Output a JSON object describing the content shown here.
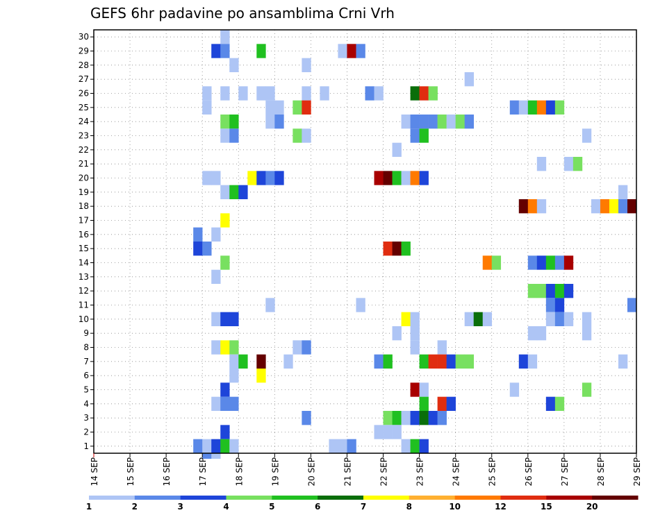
{
  "chart_data": {
    "type": "heatmap",
    "title": "GEFS 6hr padavine po ansamblima Crni Vrh",
    "xlabel": "",
    "ylabel": "",
    "x_ticks": [
      "14 SEP",
      "15 SEP",
      "16 SEP",
      "17 SEP",
      "18 SEP",
      "19 SEP",
      "20 SEP",
      "21 SEP",
      "22 SEP",
      "23 SEP",
      "24 SEP",
      "25 SEP",
      "26 SEP",
      "27 SEP",
      "28 SEP",
      "29 SEP"
    ],
    "y_ticks": [
      1,
      2,
      3,
      4,
      5,
      6,
      7,
      8,
      9,
      10,
      11,
      12,
      13,
      14,
      15,
      16,
      17,
      18,
      19,
      20,
      21,
      22,
      23,
      24,
      25,
      26,
      27,
      28,
      29,
      30
    ],
    "xlim_days": [
      14,
      29
    ],
    "ylim": [
      0.5,
      30.5
    ],
    "grid": "dotted",
    "colorbar": {
      "levels": [
        "1",
        "2",
        "3",
        "4",
        "5",
        "6",
        "7",
        "8",
        "10",
        "12",
        "15",
        "20"
      ],
      "colors": [
        "#aec5f5",
        "#5a88e8",
        "#1e45d9",
        "#78e060",
        "#20c020",
        "#0a6e0a",
        "#ffff00",
        "#ffb030",
        "#ff7a00",
        "#e02d10",
        "#a80000",
        "#640000"
      ]
    },
    "cell_hours": 6,
    "cells": [
      {
        "x": "17 SEP 12z",
        "m": 30,
        "level": 1
      },
      {
        "x": "17 SEP 06z",
        "m": 29,
        "level": 3
      },
      {
        "x": "17 SEP 12z",
        "m": 29,
        "level": 2
      },
      {
        "x": "18 SEP 12z",
        "m": 29,
        "level": 5
      },
      {
        "x": "20 SEP 18z",
        "m": 29,
        "level": 1
      },
      {
        "x": "21 SEP 00z",
        "m": 29,
        "level": 15
      },
      {
        "x": "21 SEP 06z",
        "m": 29,
        "level": 2
      },
      {
        "x": "17 SEP 18z",
        "m": 28,
        "level": 1
      },
      {
        "x": "19 SEP 18z",
        "m": 28,
        "level": 1
      },
      {
        "x": "24 SEP 06z",
        "m": 27,
        "level": 1
      },
      {
        "x": "17 SEP 00z",
        "m": 26,
        "level": 1
      },
      {
        "x": "17 SEP 12z",
        "m": 26,
        "level": 1
      },
      {
        "x": "18 SEP 00z",
        "m": 26,
        "level": 1
      },
      {
        "x": "18 SEP 12z",
        "m": 26,
        "level": 1
      },
      {
        "x": "18 SEP 18z",
        "m": 26,
        "level": 1
      },
      {
        "x": "19 SEP 18z",
        "m": 26,
        "level": 1
      },
      {
        "x": "20 SEP 06z",
        "m": 26,
        "level": 1
      },
      {
        "x": "21 SEP 12z",
        "m": 26,
        "level": 2
      },
      {
        "x": "21 SEP 18z",
        "m": 26,
        "level": 1
      },
      {
        "x": "22 SEP 18z",
        "m": 26,
        "level": 6
      },
      {
        "x": "23 SEP 00z",
        "m": 26,
        "level": 12
      },
      {
        "x": "23 SEP 06z",
        "m": 26,
        "level": 4
      },
      {
        "x": "17 SEP 00z",
        "m": 25,
        "level": 1
      },
      {
        "x": "18 SEP 18z",
        "m": 25,
        "level": 1
      },
      {
        "x": "19 SEP 00z",
        "m": 25,
        "level": 1
      },
      {
        "x": "19 SEP 12z",
        "m": 25,
        "level": 4
      },
      {
        "x": "19 SEP 18z",
        "m": 25,
        "level": 12
      },
      {
        "x": "25 SEP 12z",
        "m": 25,
        "level": 2
      },
      {
        "x": "25 SEP 18z",
        "m": 25,
        "level": 1
      },
      {
        "x": "26 SEP 00z",
        "m": 25,
        "level": 5
      },
      {
        "x": "26 SEP 06z",
        "m": 25,
        "level": 10
      },
      {
        "x": "26 SEP 12z",
        "m": 25,
        "level": 3
      },
      {
        "x": "26 SEP 18z",
        "m": 25,
        "level": 4
      },
      {
        "x": "17 SEP 12z",
        "m": 24,
        "level": 4
      },
      {
        "x": "17 SEP 18z",
        "m": 24,
        "level": 5
      },
      {
        "x": "18 SEP 18z",
        "m": 24,
        "level": 1
      },
      {
        "x": "19 SEP 00z",
        "m": 24,
        "level": 2
      },
      {
        "x": "22 SEP 12z",
        "m": 24,
        "level": 1
      },
      {
        "x": "22 SEP 18z",
        "m": 24,
        "level": 2
      },
      {
        "x": "23 SEP 00z",
        "m": 24,
        "level": 2
      },
      {
        "x": "23 SEP 06z",
        "m": 24,
        "level": 2
      },
      {
        "x": "23 SEP 12z",
        "m": 24,
        "level": 4
      },
      {
        "x": "23 SEP 18z",
        "m": 24,
        "level": 1
      },
      {
        "x": "24 SEP 00z",
        "m": 24,
        "level": 4
      },
      {
        "x": "24 SEP 06z",
        "m": 24,
        "level": 2
      },
      {
        "x": "17 SEP 12z",
        "m": 23,
        "level": 1
      },
      {
        "x": "17 SEP 18z",
        "m": 23,
        "level": 2
      },
      {
        "x": "19 SEP 12z",
        "m": 23,
        "level": 4
      },
      {
        "x": "19 SEP 18z",
        "m": 23,
        "level": 1
      },
      {
        "x": "22 SEP 18z",
        "m": 23,
        "level": 2
      },
      {
        "x": "23 SEP 00z",
        "m": 23,
        "level": 5
      },
      {
        "x": "27 SEP 12z",
        "m": 23,
        "level": 1
      },
      {
        "x": "22 SEP 06z",
        "m": 22,
        "level": 1
      },
      {
        "x": "26 SEP 06z",
        "m": 21,
        "level": 1
      },
      {
        "x": "27 SEP 00z",
        "m": 21,
        "level": 1
      },
      {
        "x": "27 SEP 06z",
        "m": 21,
        "level": 4
      },
      {
        "x": "17 SEP 00z",
        "m": 20,
        "level": 1
      },
      {
        "x": "17 SEP 06z",
        "m": 20,
        "level": 1
      },
      {
        "x": "18 SEP 06z",
        "m": 20,
        "level": 7
      },
      {
        "x": "18 SEP 12z",
        "m": 20,
        "level": 3
      },
      {
        "x": "18 SEP 18z",
        "m": 20,
        "level": 2
      },
      {
        "x": "19 SEP 00z",
        "m": 20,
        "level": 3
      },
      {
        "x": "21 SEP 18z",
        "m": 20,
        "level": 15
      },
      {
        "x": "22 SEP 00z",
        "m": 20,
        "level": 20
      },
      {
        "x": "22 SEP 06z",
        "m": 20,
        "level": 5
      },
      {
        "x": "22 SEP 12z",
        "m": 20,
        "level": 1
      },
      {
        "x": "22 SEP 18z",
        "m": 20,
        "level": 10
      },
      {
        "x": "23 SEP 00z",
        "m": 20,
        "level": 3
      },
      {
        "x": "17 SEP 12z",
        "m": 19,
        "level": 1
      },
      {
        "x": "17 SEP 18z",
        "m": 19,
        "level": 5
      },
      {
        "x": "18 SEP 00z",
        "m": 19,
        "level": 3
      },
      {
        "x": "28 SEP 12z",
        "m": 19,
        "level": 1
      },
      {
        "x": "25 SEP 18z",
        "m": 18,
        "level": 20
      },
      {
        "x": "26 SEP 00z",
        "m": 18,
        "level": 10
      },
      {
        "x": "26 SEP 06z",
        "m": 18,
        "level": 1
      },
      {
        "x": "27 SEP 18z",
        "m": 18,
        "level": 1
      },
      {
        "x": "28 SEP 00z",
        "m": 18,
        "level": 10
      },
      {
        "x": "28 SEP 06z",
        "m": 18,
        "level": 7
      },
      {
        "x": "28 SEP 12z",
        "m": 18,
        "level": 2
      },
      {
        "x": "28 SEP 18z",
        "m": 18,
        "level": 20
      },
      {
        "x": "17 SEP 12z",
        "m": 17,
        "level": 7
      },
      {
        "x": "16 SEP 18z",
        "m": 16,
        "level": 2
      },
      {
        "x": "17 SEP 06z",
        "m": 16,
        "level": 1
      },
      {
        "x": "16 SEP 18z",
        "m": 15,
        "level": 3
      },
      {
        "x": "17 SEP 00z",
        "m": 15,
        "level": 2
      },
      {
        "x": "22 SEP 00z",
        "m": 15,
        "level": 12
      },
      {
        "x": "22 SEP 06z",
        "m": 15,
        "level": 20
      },
      {
        "x": "22 SEP 12z",
        "m": 15,
        "level": 5
      },
      {
        "x": "17 SEP 12z",
        "m": 14,
        "level": 4
      },
      {
        "x": "24 SEP 18z",
        "m": 14,
        "level": 10
      },
      {
        "x": "25 SEP 00z",
        "m": 14,
        "level": 4
      },
      {
        "x": "26 SEP 00z",
        "m": 14,
        "level": 2
      },
      {
        "x": "26 SEP 06z",
        "m": 14,
        "level": 3
      },
      {
        "x": "26 SEP 12z",
        "m": 14,
        "level": 5
      },
      {
        "x": "26 SEP 18z",
        "m": 14,
        "level": 2
      },
      {
        "x": "27 SEP 00z",
        "m": 14,
        "level": 15
      },
      {
        "x": "17 SEP 06z",
        "m": 13,
        "level": 1
      },
      {
        "x": "26 SEP 00z",
        "m": 12,
        "level": 4
      },
      {
        "x": "26 SEP 06z",
        "m": 12,
        "level": 4
      },
      {
        "x": "26 SEP 12z",
        "m": 12,
        "level": 3
      },
      {
        "x": "26 SEP 18z",
        "m": 12,
        "level": 5
      },
      {
        "x": "27 SEP 00z",
        "m": 12,
        "level": 3
      },
      {
        "x": "18 SEP 18z",
        "m": 11,
        "level": 1
      },
      {
        "x": "21 SEP 06z",
        "m": 11,
        "level": 1
      },
      {
        "x": "26 SEP 12z",
        "m": 11,
        "level": 2
      },
      {
        "x": "26 SEP 18z",
        "m": 11,
        "level": 3
      },
      {
        "x": "28 SEP 18z",
        "m": 11,
        "level": 2
      },
      {
        "x": "17 SEP 06z",
        "m": 10,
        "level": 1
      },
      {
        "x": "17 SEP 12z",
        "m": 10,
        "level": 3
      },
      {
        "x": "17 SEP 18z",
        "m": 10,
        "level": 3
      },
      {
        "x": "22 SEP 12z",
        "m": 10,
        "level": 7
      },
      {
        "x": "22 SEP 18z",
        "m": 10,
        "level": 1
      },
      {
        "x": "24 SEP 06z",
        "m": 10,
        "level": 1
      },
      {
        "x": "24 SEP 12z",
        "m": 10,
        "level": 6
      },
      {
        "x": "24 SEP 18z",
        "m": 10,
        "level": 1
      },
      {
        "x": "26 SEP 12z",
        "m": 10,
        "level": 1
      },
      {
        "x": "26 SEP 18z",
        "m": 10,
        "level": 2
      },
      {
        "x": "27 SEP 00z",
        "m": 10,
        "level": 1
      },
      {
        "x": "27 SEP 12z",
        "m": 10,
        "level": 1
      },
      {
        "x": "22 SEP 06z",
        "m": 9,
        "level": 1
      },
      {
        "x": "22 SEP 18z",
        "m": 9,
        "level": 1
      },
      {
        "x": "26 SEP 00z",
        "m": 9,
        "level": 1
      },
      {
        "x": "26 SEP 06z",
        "m": 9,
        "level": 1
      },
      {
        "x": "27 SEP 12z",
        "m": 9,
        "level": 1
      },
      {
        "x": "17 SEP 06z",
        "m": 8,
        "level": 1
      },
      {
        "x": "17 SEP 12z",
        "m": 8,
        "level": 7
      },
      {
        "x": "17 SEP 18z",
        "m": 8,
        "level": 4
      },
      {
        "x": "19 SEP 12z",
        "m": 8,
        "level": 1
      },
      {
        "x": "19 SEP 18z",
        "m": 8,
        "level": 2
      },
      {
        "x": "22 SEP 18z",
        "m": 8,
        "level": 1
      },
      {
        "x": "23 SEP 12z",
        "m": 8,
        "level": 1
      },
      {
        "x": "17 SEP 18z",
        "m": 7,
        "level": 1
      },
      {
        "x": "18 SEP 00z",
        "m": 7,
        "level": 5
      },
      {
        "x": "18 SEP 12z",
        "m": 7,
        "level": 20
      },
      {
        "x": "19 SEP 06z",
        "m": 7,
        "level": 1
      },
      {
        "x": "21 SEP 18z",
        "m": 7,
        "level": 2
      },
      {
        "x": "22 SEP 00z",
        "m": 7,
        "level": 5
      },
      {
        "x": "23 SEP 00z",
        "m": 7,
        "level": 5
      },
      {
        "x": "23 SEP 06z",
        "m": 7,
        "level": 12
      },
      {
        "x": "23 SEP 12z",
        "m": 7,
        "level": 12
      },
      {
        "x": "23 SEP 18z",
        "m": 7,
        "level": 3
      },
      {
        "x": "24 SEP 00z",
        "m": 7,
        "level": 4
      },
      {
        "x": "24 SEP 06z",
        "m": 7,
        "level": 4
      },
      {
        "x": "25 SEP 18z",
        "m": 7,
        "level": 3
      },
      {
        "x": "26 SEP 00z",
        "m": 7,
        "level": 1
      },
      {
        "x": "28 SEP 12z",
        "m": 7,
        "level": 1
      },
      {
        "x": "17 SEP 18z",
        "m": 6,
        "level": 1
      },
      {
        "x": "18 SEP 12z",
        "m": 6,
        "level": 7
      },
      {
        "x": "17 SEP 12z",
        "m": 5,
        "level": 3
      },
      {
        "x": "22 SEP 18z",
        "m": 5,
        "level": 15
      },
      {
        "x": "23 SEP 00z",
        "m": 5,
        "level": 1
      },
      {
        "x": "25 SEP 12z",
        "m": 5,
        "level": 1
      },
      {
        "x": "27 SEP 12z",
        "m": 5,
        "level": 4
      },
      {
        "x": "17 SEP 06z",
        "m": 4,
        "level": 1
      },
      {
        "x": "17 SEP 12z",
        "m": 4,
        "level": 2
      },
      {
        "x": "17 SEP 18z",
        "m": 4,
        "level": 2
      },
      {
        "x": "23 SEP 00z",
        "m": 4,
        "level": 5
      },
      {
        "x": "23 SEP 12z",
        "m": 4,
        "level": 12
      },
      {
        "x": "23 SEP 18z",
        "m": 4,
        "level": 3
      },
      {
        "x": "26 SEP 12z",
        "m": 4,
        "level": 3
      },
      {
        "x": "26 SEP 18z",
        "m": 4,
        "level": 4
      },
      {
        "x": "19 SEP 18z",
        "m": 3,
        "level": 2
      },
      {
        "x": "22 SEP 00z",
        "m": 3,
        "level": 4
      },
      {
        "x": "22 SEP 06z",
        "m": 3,
        "level": 5
      },
      {
        "x": "22 SEP 12z",
        "m": 3,
        "level": 1
      },
      {
        "x": "22 SEP 18z",
        "m": 3,
        "level": 3
      },
      {
        "x": "23 SEP 00z",
        "m": 3,
        "level": 6
      },
      {
        "x": "23 SEP 06z",
        "m": 3,
        "level": 3
      },
      {
        "x": "23 SEP 12z",
        "m": 3,
        "level": 2
      },
      {
        "x": "17 SEP 12z",
        "m": 2,
        "level": 3
      },
      {
        "x": "21 SEP 18z",
        "m": 2,
        "level": 1
      },
      {
        "x": "22 SEP 00z",
        "m": 2,
        "level": 1
      },
      {
        "x": "22 SEP 06z",
        "m": 2,
        "level": 1
      },
      {
        "x": "16 SEP 18z",
        "m": 1,
        "level": 2
      },
      {
        "x": "17 SEP 00z",
        "m": 1,
        "level": 1
      },
      {
        "x": "17 SEP 06z",
        "m": 1,
        "level": 3
      },
      {
        "x": "17 SEP 12z",
        "m": 1,
        "level": 5
      },
      {
        "x": "17 SEP 18z",
        "m": 1,
        "level": 1
      },
      {
        "x": "20 SEP 12z",
        "m": 1,
        "level": 1
      },
      {
        "x": "20 SEP 18z",
        "m": 1,
        "level": 1
      },
      {
        "x": "21 SEP 00z",
        "m": 1,
        "level": 2
      },
      {
        "x": "22 SEP 12z",
        "m": 1,
        "level": 1
      },
      {
        "x": "22 SEP 18z",
        "m": 1,
        "level": 5
      },
      {
        "x": "23 SEP 00z",
        "m": 1,
        "level": 3
      },
      {
        "x": "17 SEP 00z",
        "m": 0,
        "level": 2
      },
      {
        "x": "17 SEP 06z",
        "m": 0,
        "level": 1
      }
    ]
  }
}
